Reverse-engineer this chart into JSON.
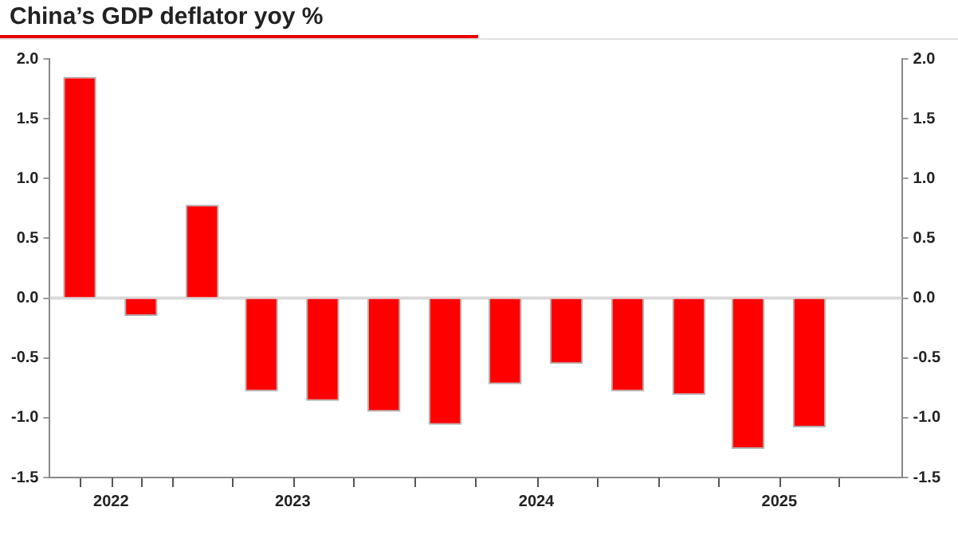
{
  "chart_data": {
    "type": "bar",
    "title": "China’s GDP deflator yoy %",
    "x": [
      "2022-08-15",
      "2022-11-15",
      "2023-02-15",
      "2023-05-15",
      "2023-08-15",
      "2023-11-15",
      "2024-02-15",
      "2024-05-15",
      "2024-08-15",
      "2024-11-15",
      "2025-02-15",
      "2025-05-15",
      "2025-08-15"
    ],
    "values": [
      1.85,
      -0.15,
      0.78,
      -0.78,
      -0.86,
      -0.95,
      -1.06,
      -0.72,
      -0.55,
      -0.78,
      -0.81,
      -1.26,
      -1.08
    ],
    "color": "#ff0000",
    "xlim": [
      "2022-07-01",
      "2026-01-01"
    ],
    "xticks": [
      {
        "value": "2022-10-01",
        "label": "2022"
      },
      {
        "value": "2023-01-01",
        "label": null
      },
      {
        "value": "2023-07-01",
        "label": "2023"
      },
      {
        "value": "2024-01-01",
        "label": null
      },
      {
        "value": "2024-07-01",
        "label": "2024"
      },
      {
        "value": "2025-01-01",
        "label": null
      },
      {
        "value": "2025-07-01",
        "label": "2025"
      }
    ],
    "ylim": [
      -1.5,
      2.0
    ],
    "yticks": [
      {
        "value": -1.5,
        "label": "-1.5"
      },
      {
        "value": -1.0,
        "label": "-1.0"
      },
      {
        "value": -0.5,
        "label": "-0.5"
      },
      {
        "value": 0,
        "label": "0.0"
      },
      {
        "value": 0.5,
        "label": "0.5"
      },
      {
        "value": 1.0,
        "label": "1.0"
      },
      {
        "value": 1.5,
        "label": "1.5"
      },
      {
        "value": 2.0,
        "label": "2.0"
      }
    ],
    "y2lim": [
      -1.5,
      2.0
    ],
    "y2ticks": [
      {
        "value": -1.5,
        "label": "-1.5"
      },
      {
        "value": -1.0,
        "label": "-1.0"
      },
      {
        "value": -0.5,
        "label": "-0.5"
      },
      {
        "value": 0,
        "label": "0.0"
      },
      {
        "value": 0.5,
        "label": "0.5"
      },
      {
        "value": 1.0,
        "label": "1.0"
      },
      {
        "value": 1.5,
        "label": "1.5"
      },
      {
        "value": 2.0,
        "label": "2.0"
      }
    ],
    "ref_lines": [
      {
        "axis": "y",
        "value": 0,
        "color": "#d9d9d9"
      }
    ],
    "grid": false,
    "legend": false
  }
}
